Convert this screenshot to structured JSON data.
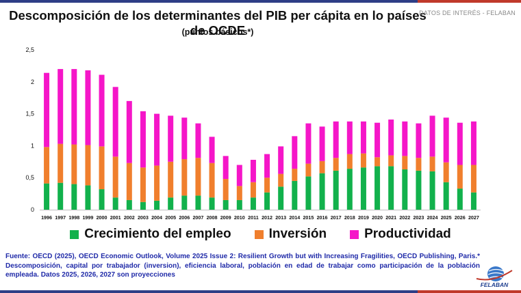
{
  "header": {
    "tag": "DATOS DE INTERÉS - FELABAN"
  },
  "chart_data": {
    "type": "bar",
    "stacked": true,
    "title": "Descomposición de los determinantes del PIB per cápita en lo países de OCDE",
    "subtitle": "(puntos básicos*)",
    "xlabel": "",
    "ylabel": "",
    "ylim": [
      0,
      2.5
    ],
    "yticks": [
      "0",
      "0,5",
      "1",
      "1,5",
      "2",
      "2,5"
    ],
    "ytick_values": [
      0,
      0.5,
      1,
      1.5,
      2,
      2.5
    ],
    "grid": false,
    "categories": [
      "1996",
      "1997",
      "1998",
      "1999",
      "2000",
      "2001",
      "2002",
      "2003",
      "2004",
      "2005",
      "2006",
      "2007",
      "2008",
      "2009",
      "2010",
      "2011",
      "2012",
      "2013",
      "2014",
      "2015",
      "2016",
      "2017",
      "2018",
      "2019",
      "2020",
      "2021",
      "2022",
      "2023",
      "2024",
      "2025",
      "2026",
      "2027"
    ],
    "series": [
      {
        "name": "Crecimiento del empleo",
        "color": "#12b14c",
        "values": [
          0.41,
          0.42,
          0.4,
          0.38,
          0.32,
          0.19,
          0.15,
          0.12,
          0.14,
          0.19,
          0.22,
          0.22,
          0.19,
          0.15,
          0.15,
          0.19,
          0.27,
          0.36,
          0.45,
          0.52,
          0.57,
          0.61,
          0.64,
          0.66,
          0.68,
          0.68,
          0.63,
          0.61,
          0.6,
          0.43,
          0.33,
          0.27
        ]
      },
      {
        "name": "Inversión",
        "color": "#f07f2d",
        "values": [
          0.57,
          0.61,
          0.62,
          0.63,
          0.67,
          0.64,
          0.58,
          0.54,
          0.55,
          0.56,
          0.57,
          0.59,
          0.54,
          0.33,
          0.22,
          0.24,
          0.23,
          0.2,
          0.19,
          0.2,
          0.19,
          0.2,
          0.23,
          0.22,
          0.14,
          0.17,
          0.21,
          0.2,
          0.23,
          0.31,
          0.37,
          0.43
        ]
      },
      {
        "name": "Productividad",
        "color": "#f516c8",
        "values": [
          1.16,
          1.17,
          1.18,
          1.17,
          1.12,
          1.09,
          0.97,
          0.88,
          0.81,
          0.72,
          0.65,
          0.54,
          0.41,
          0.36,
          0.33,
          0.35,
          0.37,
          0.43,
          0.51,
          0.63,
          0.54,
          0.57,
          0.51,
          0.5,
          0.54,
          0.56,
          0.54,
          0.54,
          0.64,
          0.7,
          0.66,
          0.68
        ]
      }
    ],
    "legend_position": "bottom"
  },
  "legend": [
    {
      "label": "Crecimiento del empleo",
      "color": "#12b14c"
    },
    {
      "label": "Inversión",
      "color": "#f07f2d"
    },
    {
      "label": "Productividad",
      "color": "#f516c8"
    }
  ],
  "footer": {
    "source": "Fuente: OECD (2025), OECD Economic Outlook, Volume 2025 Issue 2: Resilient Growth but with Increasing Fragilities, OECD Publishing, Paris.* Descomposición, capital por trabajador (inversion), eficiencia laboral, población en edad de trabajar como participación de la población empleada. Datos 2025, 2026, 2027 son proyecciones",
    "logo_text": "FELABAN"
  }
}
